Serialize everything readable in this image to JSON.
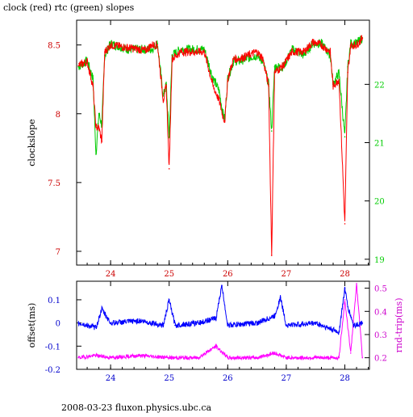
{
  "header": {
    "title": "clock (red) rtc (green) slopes"
  },
  "footer": {
    "text": "2008-03-23 fluxon.physics.ubc.ca"
  },
  "chart_data": [
    {
      "type": "line",
      "title": "clock (red) rtc (green) slopes",
      "xlabel": "",
      "ylabel": "clockslope",
      "xlim": [
        23.42,
        28.42
      ],
      "ylim_left": [
        6.9,
        8.68
      ],
      "ylim_right": [
        18.9,
        23.1
      ],
      "x_ticks": [
        24,
        25,
        26,
        27,
        28
      ],
      "y_ticks_left": [
        7,
        7.5,
        8,
        8.5
      ],
      "y_ticks_right": [
        19,
        20,
        21,
        22
      ],
      "grid": false,
      "colors": {
        "clock": "#ff0000",
        "rtc": "#00cc00",
        "axis_left": "#cc0000",
        "axis_right": "#00cc00"
      },
      "series": [
        {
          "axis": "left",
          "x": [
            23.45,
            23.6,
            23.7,
            23.75,
            23.8,
            23.85,
            23.9,
            24.0,
            24.3,
            24.6,
            24.7,
            24.8,
            24.9,
            24.95,
            25.0,
            25.05,
            25.2,
            25.6,
            25.75,
            25.85,
            25.92,
            25.95,
            26.0,
            26.1,
            26.2,
            26.5,
            26.6,
            26.7,
            26.75,
            26.8,
            26.95,
            27.1,
            27.3,
            27.45,
            27.6,
            27.75,
            27.8,
            27.9,
            28.0,
            28.05,
            28.1,
            28.2,
            28.3
          ],
          "values": [
            8.35,
            8.38,
            8.2,
            7.9,
            7.9,
            7.8,
            8.45,
            8.5,
            8.48,
            8.46,
            8.5,
            8.5,
            8.1,
            8.2,
            7.6,
            8.4,
            8.45,
            8.45,
            8.2,
            8.1,
            7.98,
            7.95,
            8.25,
            8.4,
            8.4,
            8.45,
            8.4,
            8.2,
            6.97,
            8.3,
            8.35,
            8.45,
            8.45,
            8.52,
            8.5,
            8.45,
            8.2,
            8.25,
            7.2,
            8.3,
            8.5,
            8.5,
            8.55
          ]
        },
        {
          "axis": "right",
          "x": [
            23.45,
            23.6,
            23.7,
            23.75,
            23.8,
            23.85,
            23.9,
            24.0,
            24.3,
            24.6,
            24.7,
            24.8,
            24.9,
            24.95,
            25.0,
            25.05,
            25.2,
            25.6,
            25.75,
            25.85,
            25.92,
            25.95,
            26.0,
            26.1,
            26.2,
            26.5,
            26.6,
            26.7,
            26.75,
            26.8,
            26.95,
            27.1,
            27.3,
            27.45,
            27.6,
            27.75,
            27.8,
            27.9,
            28.0,
            28.05,
            28.1,
            28.2,
            28.3
          ],
          "values": [
            22.3,
            22.4,
            22.1,
            20.8,
            21.5,
            21.3,
            22.5,
            22.7,
            22.6,
            22.6,
            22.6,
            22.7,
            21.8,
            22.0,
            21.1,
            22.5,
            22.6,
            22.6,
            22.1,
            21.9,
            21.5,
            21.4,
            22.1,
            22.4,
            22.4,
            22.5,
            22.4,
            22.0,
            21.2,
            22.3,
            22.3,
            22.6,
            22.5,
            22.7,
            22.7,
            22.5,
            22.0,
            22.2,
            21.1,
            22.3,
            22.7,
            22.7,
            22.8
          ]
        }
      ]
    },
    {
      "type": "line",
      "title": "",
      "xlabel": "",
      "ylabel": "offset(ms)",
      "ylabel_right": "rnd-trip(ms)",
      "xlim": [
        23.42,
        28.42
      ],
      "ylim_left": [
        -0.2,
        0.18
      ],
      "ylim_right": [
        0.15,
        0.53
      ],
      "x_ticks": [
        24,
        25,
        26,
        27,
        28
      ],
      "y_ticks_left": [
        -0.2,
        -0.1,
        0,
        0.1
      ],
      "y_ticks_left_labels": [
        "-0.2",
        "-0.1",
        "0",
        "0.1"
      ],
      "y_ticks_right": [
        0.2,
        0.3,
        0.4,
        0.5
      ],
      "grid": false,
      "colors": {
        "offset": "#0000ff",
        "rndtrip": "#ff00ff",
        "axis_left": "#0000cc",
        "axis_right": "#cc00cc"
      },
      "series": [
        {
          "axis": "left",
          "x": [
            23.45,
            23.75,
            23.85,
            24.0,
            24.5,
            24.9,
            25.0,
            25.1,
            25.5,
            25.8,
            25.9,
            26.0,
            26.5,
            26.8,
            26.9,
            27.0,
            27.5,
            27.9,
            28.0,
            28.05,
            28.15,
            28.3
          ],
          "values": [
            0.0,
            -0.02,
            0.06,
            0.0,
            0.01,
            -0.01,
            0.1,
            -0.01,
            0.0,
            0.02,
            0.16,
            -0.01,
            0.0,
            0.03,
            0.11,
            -0.01,
            0.0,
            -0.04,
            0.15,
            0.07,
            -0.01,
            0.0
          ]
        },
        {
          "axis": "right",
          "x": [
            23.45,
            23.75,
            24.0,
            24.5,
            25.0,
            25.5,
            25.8,
            26.0,
            26.5,
            26.8,
            27.0,
            27.5,
            27.9,
            28.0,
            28.1,
            28.2,
            28.3
          ],
          "values": [
            0.2,
            0.21,
            0.2,
            0.21,
            0.2,
            0.2,
            0.25,
            0.2,
            0.2,
            0.22,
            0.2,
            0.2,
            0.2,
            0.45,
            0.22,
            0.52,
            0.2
          ]
        }
      ]
    }
  ]
}
